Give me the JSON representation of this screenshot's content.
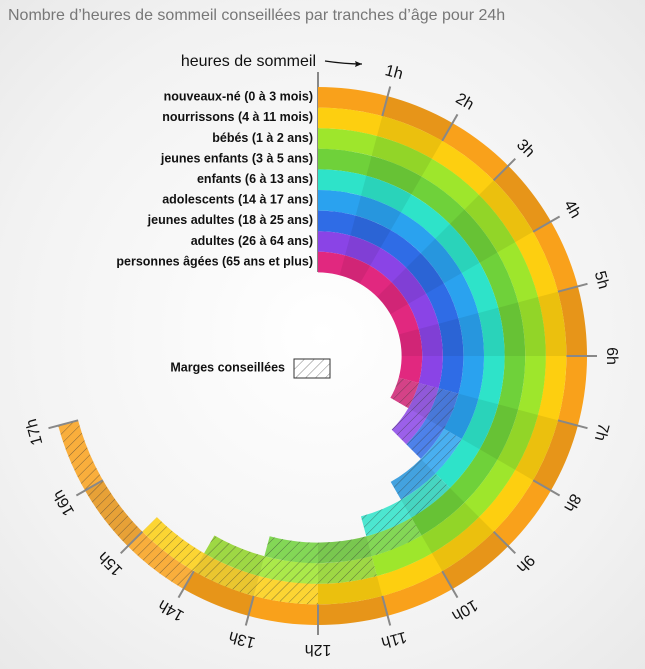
{
  "chart_data": {
    "type": "radial_range",
    "title": "Nombre d’heures de sommeil conseillées par tranches d’âge pour 24h",
    "axis_label": "heures de sommeil",
    "legend_label": "Marges conseillées",
    "categories": [
      "nouveaux-né (0 à 3 mois)",
      "nourrissons (4 à 11 mois)",
      "bébés (1 à 2 ans)",
      "jeunes enfants (3 à 5 ans)",
      "enfants (6 à 13 ans)",
      "adolescents (14 à 17 ans)",
      "jeunes adultes (18 à 25 ans)",
      "adultes (26 à 64 ans)",
      "personnes âgées (65 ans et plus)"
    ],
    "min": [
      14,
      12,
      11,
      10,
      9,
      8,
      7,
      7,
      7
    ],
    "max": [
      17,
      15,
      14,
      13,
      11,
      10,
      9,
      9,
      8
    ],
    "colors": [
      "#f9a11b",
      "#fdcf10",
      "#9ee62c",
      "#6fd13a",
      "#2ee3c9",
      "#2aa2ef",
      "#2f6ce6",
      "#8a44e6",
      "#e1287f"
    ],
    "xlim": [
      0,
      24
    ],
    "xticks": [
      {
        "value": 1,
        "label": "1h"
      },
      {
        "value": 2,
        "label": "2h"
      },
      {
        "value": 3,
        "label": "3h"
      },
      {
        "value": 4,
        "label": "4h"
      },
      {
        "value": 5,
        "label": "5h"
      },
      {
        "value": 6,
        "label": "6h"
      },
      {
        "value": 7,
        "label": "7h"
      },
      {
        "value": 8,
        "label": "8h"
      },
      {
        "value": 9,
        "label": "9h"
      },
      {
        "value": 10,
        "label": "10h"
      },
      {
        "value": 11,
        "label": "11h"
      },
      {
        "value": 12,
        "label": "12h"
      },
      {
        "value": 13,
        "label": "13h"
      },
      {
        "value": 14,
        "label": "14h"
      },
      {
        "value": 15,
        "label": "15h"
      },
      {
        "value": 16,
        "label": "16h"
      },
      {
        "value": 17,
        "label": "17h"
      }
    ]
  }
}
